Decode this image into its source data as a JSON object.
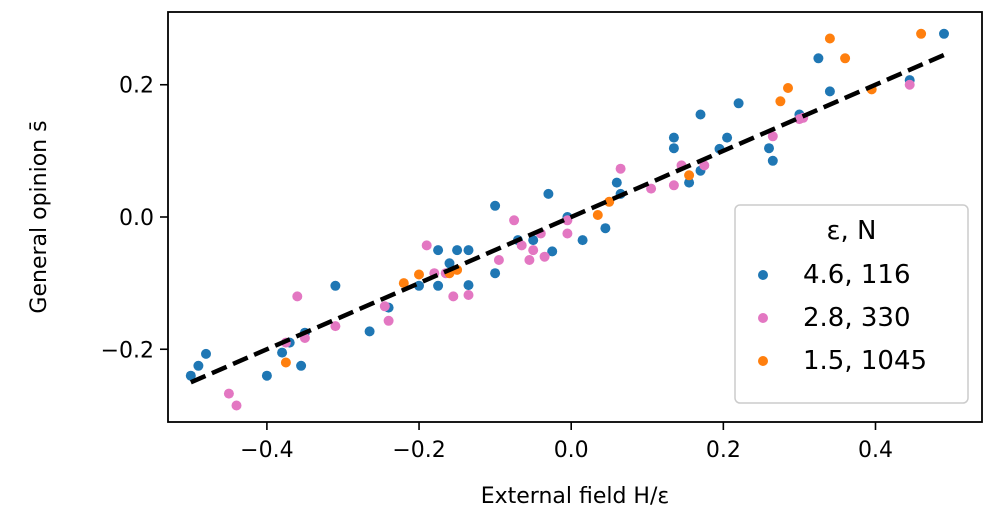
{
  "chart_data": {
    "type": "scatter",
    "xlabel": "External field  H/ε",
    "ylabel": "General opinion  s̄",
    "xlim": [
      -0.53,
      0.54
    ],
    "ylim": [
      -0.31,
      0.31
    ],
    "x_ticks": [
      -0.4,
      -0.2,
      0.0,
      0.2,
      0.4
    ],
    "x_tick_labels": [
      "−0.4",
      "−0.2",
      "0.0",
      "0.2",
      "0.4"
    ],
    "y_ticks": [
      -0.2,
      0.0,
      0.2
    ],
    "y_tick_labels": [
      "−0.2",
      "0.0",
      "0.2"
    ],
    "grid": false,
    "legend": {
      "title": "ε, N",
      "placement": "lower-right"
    },
    "fit_line": {
      "style": "dashed",
      "color": "#000000",
      "x": [
        -0.5,
        0.49
      ],
      "y": [
        -0.25,
        0.245
      ]
    },
    "series": [
      {
        "name": "4.6, 116",
        "color": "#1f77b4",
        "points": [
          [
            -0.5,
            -0.24
          ],
          [
            -0.49,
            -0.225
          ],
          [
            -0.48,
            -0.207
          ],
          [
            -0.38,
            -0.205
          ],
          [
            -0.4,
            -0.24
          ],
          [
            -0.37,
            -0.19
          ],
          [
            -0.355,
            -0.225
          ],
          [
            -0.35,
            -0.175
          ],
          [
            -0.31,
            -0.104
          ],
          [
            -0.265,
            -0.173
          ],
          [
            -0.24,
            -0.137
          ],
          [
            -0.2,
            -0.104
          ],
          [
            -0.175,
            -0.05
          ],
          [
            -0.175,
            -0.104
          ],
          [
            -0.16,
            -0.07
          ],
          [
            -0.15,
            -0.05
          ],
          [
            -0.135,
            -0.05
          ],
          [
            -0.135,
            -0.103
          ],
          [
            -0.1,
            0.017
          ],
          [
            -0.1,
            -0.085
          ],
          [
            -0.07,
            -0.035
          ],
          [
            -0.05,
            -0.035
          ],
          [
            -0.03,
            0.035
          ],
          [
            -0.025,
            -0.052
          ],
          [
            -0.005,
            0.0
          ],
          [
            0.015,
            -0.035
          ],
          [
            0.045,
            -0.017
          ],
          [
            0.065,
            0.035
          ],
          [
            0.06,
            0.052
          ],
          [
            0.135,
            0.12
          ],
          [
            0.135,
            0.104
          ],
          [
            0.155,
            0.052
          ],
          [
            0.17,
            0.155
          ],
          [
            0.17,
            0.07
          ],
          [
            0.195,
            0.103
          ],
          [
            0.205,
            0.12
          ],
          [
            0.22,
            0.172
          ],
          [
            0.26,
            0.104
          ],
          [
            0.265,
            0.085
          ],
          [
            0.3,
            0.155
          ],
          [
            0.325,
            0.24
          ],
          [
            0.34,
            0.19
          ],
          [
            0.445,
            0.207
          ],
          [
            0.49,
            0.277
          ]
        ]
      },
      {
        "name": "2.8, 330",
        "color": "#e377c2",
        "points": [
          [
            -0.45,
            -0.267
          ],
          [
            -0.44,
            -0.285
          ],
          [
            -0.375,
            -0.19
          ],
          [
            -0.36,
            -0.12
          ],
          [
            -0.35,
            -0.183
          ],
          [
            -0.31,
            -0.165
          ],
          [
            -0.245,
            -0.135
          ],
          [
            -0.24,
            -0.157
          ],
          [
            -0.19,
            -0.043
          ],
          [
            -0.18,
            -0.085
          ],
          [
            -0.165,
            -0.085
          ],
          [
            -0.155,
            -0.12
          ],
          [
            -0.135,
            -0.118
          ],
          [
            -0.095,
            -0.065
          ],
          [
            -0.075,
            -0.005
          ],
          [
            -0.065,
            -0.043
          ],
          [
            -0.055,
            -0.065
          ],
          [
            -0.05,
            -0.05
          ],
          [
            -0.04,
            -0.025
          ],
          [
            -0.035,
            -0.06
          ],
          [
            -0.005,
            -0.025
          ],
          [
            -0.005,
            -0.005
          ],
          [
            0.065,
            0.073
          ],
          [
            0.105,
            0.043
          ],
          [
            0.135,
            0.048
          ],
          [
            0.145,
            0.078
          ],
          [
            0.175,
            0.078
          ],
          [
            0.265,
            0.122
          ],
          [
            0.3,
            0.148
          ],
          [
            0.305,
            0.15
          ],
          [
            0.445,
            0.2
          ]
        ]
      },
      {
        "name": "1.5, 1045",
        "color": "#ff7f0e",
        "points": [
          [
            -0.375,
            -0.22
          ],
          [
            -0.22,
            -0.1
          ],
          [
            -0.2,
            -0.087
          ],
          [
            -0.16,
            -0.085
          ],
          [
            -0.15,
            -0.08
          ],
          [
            0.035,
            0.003
          ],
          [
            0.05,
            0.023
          ],
          [
            0.155,
            0.063
          ],
          [
            0.275,
            0.175
          ],
          [
            0.285,
            0.195
          ],
          [
            0.34,
            0.27
          ],
          [
            0.36,
            0.24
          ],
          [
            0.395,
            0.193
          ],
          [
            0.46,
            0.277
          ]
        ]
      }
    ]
  }
}
